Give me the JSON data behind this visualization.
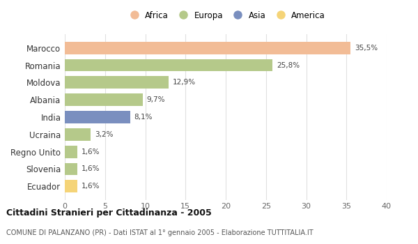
{
  "countries": [
    "Marocco",
    "Romania",
    "Moldova",
    "Albania",
    "India",
    "Ucraina",
    "Regno Unito",
    "Slovenia",
    "Ecuador"
  ],
  "values": [
    35.5,
    25.8,
    12.9,
    9.7,
    8.1,
    3.2,
    1.6,
    1.6,
    1.6
  ],
  "labels": [
    "35,5%",
    "25,8%",
    "12,9%",
    "9,7%",
    "8,1%",
    "3,2%",
    "1,6%",
    "1,6%",
    "1,6%"
  ],
  "colors": [
    "#F2BC96",
    "#B5C98A",
    "#B5C98A",
    "#B5C98A",
    "#7A8FBF",
    "#B5C98A",
    "#B5C98A",
    "#B5C98A",
    "#F5D478"
  ],
  "legend_labels": [
    "Africa",
    "Europa",
    "Asia",
    "America"
  ],
  "legend_colors": [
    "#F2BC96",
    "#B5C98A",
    "#7A8FBF",
    "#F5D478"
  ],
  "title": "Cittadini Stranieri per Cittadinanza - 2005",
  "subtitle": "COMUNE DI PALANZANO (PR) - Dati ISTAT al 1° gennaio 2005 - Elaborazione TUTTITALIA.IT",
  "xlim": [
    0,
    40
  ],
  "xticks": [
    0,
    5,
    10,
    15,
    20,
    25,
    30,
    35,
    40
  ],
  "background_color": "#ffffff",
  "grid_color": "#e0e0e0"
}
